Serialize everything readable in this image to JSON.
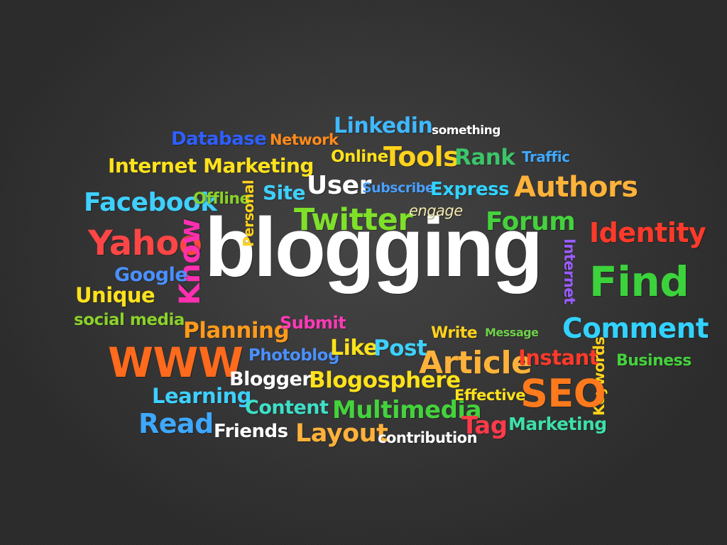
{
  "words": {
    "blogging": {
      "text": "blogging",
      "color": "#ffffff"
    },
    "linkedin": {
      "text": "Linkedin",
      "color": "#40b8ff"
    },
    "something": {
      "text": "something",
      "color": "#ffffff"
    },
    "database": {
      "text": "Database",
      "color": "#2e5fff"
    },
    "network": {
      "text": "Network",
      "color": "#ff8a1c"
    },
    "online": {
      "text": "Online",
      "color": "#ffe21c"
    },
    "tools": {
      "text": "Tools",
      "color": "#ffd21c"
    },
    "rank": {
      "text": "Rank",
      "color": "#3cc46a"
    },
    "traffic": {
      "text": "Traffic",
      "color": "#40a8ff"
    },
    "internet_marketing": {
      "text": "Internet Marketing",
      "color": "#ffe21c"
    },
    "user": {
      "text": "User",
      "color": "#ffffff"
    },
    "subscribe": {
      "text": "Subscribe",
      "color": "#4aa0ff"
    },
    "express": {
      "text": "Express",
      "color": "#32d2ff"
    },
    "authors": {
      "text": "Authors",
      "color": "#ffb23a"
    },
    "facebook": {
      "text": "Facebook",
      "color": "#3ed0ff"
    },
    "offline": {
      "text": "Offline",
      "color": "#8ad12a"
    },
    "personal": {
      "text": "Personal",
      "color": "#ffd21c"
    },
    "site": {
      "text": "Site",
      "color": "#3ed0ff"
    },
    "twitter": {
      "text": "Twitter",
      "color": "#7fe02a"
    },
    "engage": {
      "text": "engage",
      "color": "#f3e9b0"
    },
    "forum": {
      "text": "Forum",
      "color": "#44d23c"
    },
    "identity": {
      "text": "Identity",
      "color": "#ff3a2a"
    },
    "yahoo": {
      "text": "Yahoo",
      "color": "#ff4646"
    },
    "know": {
      "text": "Know",
      "color": "#ff2fb0"
    },
    "internet": {
      "text": "Internet",
      "color": "#9a5cff"
    },
    "find": {
      "text": "Find",
      "color": "#3cd23c"
    },
    "google": {
      "text": "Google",
      "color": "#4a90ff"
    },
    "unique": {
      "text": "Unique",
      "color": "#ffe21c"
    },
    "social_media": {
      "text": "social media",
      "color": "#8ad12a"
    },
    "planning": {
      "text": "Planning",
      "color": "#ff9a1c"
    },
    "submit": {
      "text": "Submit",
      "color": "#ff3ab6"
    },
    "write": {
      "text": "Write",
      "color": "#ffd21c"
    },
    "message": {
      "text": "Message",
      "color": "#6fd24a"
    },
    "comment": {
      "text": "Comment",
      "color": "#32d2ff"
    },
    "www": {
      "text": "WWW",
      "color": "#ff6a1c"
    },
    "photoblog": {
      "text": "Photoblog",
      "color": "#4a90ff"
    },
    "like": {
      "text": "Like",
      "color": "#ffe21c"
    },
    "post": {
      "text": "Post",
      "color": "#3ed0ff"
    },
    "article": {
      "text": "Article",
      "color": "#ffb23a"
    },
    "instant": {
      "text": "Instant",
      "color": "#ff3a2a"
    },
    "keywords": {
      "text": "Keywords",
      "color": "#ffd21c"
    },
    "business": {
      "text": "Business",
      "color": "#44d23c"
    },
    "blogger": {
      "text": "Blogger",
      "color": "#ffffff"
    },
    "blogosphere": {
      "text": "Blogosphere",
      "color": "#ffe21c"
    },
    "learning": {
      "text": "Learning",
      "color": "#3ed0ff"
    },
    "content": {
      "text": "Content",
      "color": "#3ee0c8"
    },
    "multimedia": {
      "text": "Multimedia",
      "color": "#44d23c"
    },
    "effective": {
      "text": "Effective",
      "color": "#ffe21c"
    },
    "seo": {
      "text": "SEO",
      "color": "#ff7a1c"
    },
    "read": {
      "text": "Read",
      "color": "#3ea8ff"
    },
    "friends": {
      "text": "Friends",
      "color": "#ffffff"
    },
    "layout": {
      "text": "Layout",
      "color": "#ffb23a"
    },
    "contribution": {
      "text": "contribution",
      "color": "#ffffff"
    },
    "tag": {
      "text": "Tag",
      "color": "#ff3a4a"
    },
    "marketing": {
      "text": "Marketing",
      "color": "#3ee0a8"
    }
  }
}
